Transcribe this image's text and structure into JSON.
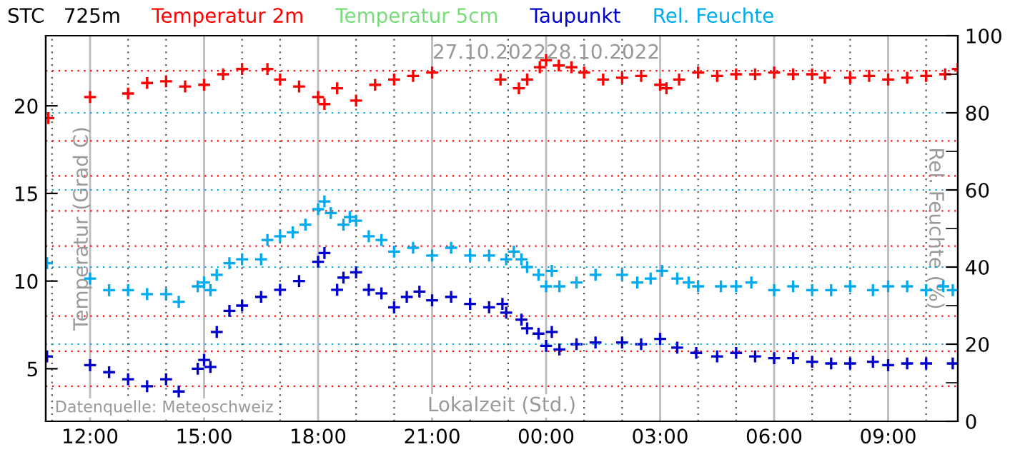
{
  "chart_data": {
    "type": "scatter",
    "title": "STC   725m",
    "xlabel": "Lokalzeit (Std.)",
    "ylabel": "Temperatur (Grad C)",
    "y2label": "Rel. Feuchte (%)",
    "annotations": [
      {
        "text": "27.10.2022",
        "x": "2022-10-28T00:00",
        "y": 23
      },
      {
        "text": "28.10.2022",
        "x": "2022-10-28T00:00",
        "y": 23
      },
      "Datenquelle: Meteoschweiz"
    ],
    "xlim": [
      "2022-10-27T10:50",
      "2022-10-28T10:50"
    ],
    "ylim": [
      2,
      24
    ],
    "y2lim": [
      0,
      100
    ],
    "xticks": [
      {
        "value": "2022-10-27T11:00",
        "label": null
      },
      {
        "value": "2022-10-27T12:00",
        "label": "12:00"
      },
      {
        "value": "2022-10-27T13:00",
        "label": null
      },
      {
        "value": "2022-10-27T14:00",
        "label": null
      },
      {
        "value": "2022-10-27T15:00",
        "label": "15:00"
      },
      {
        "value": "2022-10-27T16:00",
        "label": null
      },
      {
        "value": "2022-10-27T17:00",
        "label": null
      },
      {
        "value": "2022-10-27T18:00",
        "label": "18:00"
      },
      {
        "value": "2022-10-27T19:00",
        "label": null
      },
      {
        "value": "2022-10-27T20:00",
        "label": null
      },
      {
        "value": "2022-10-27T21:00",
        "label": "21:00"
      },
      {
        "value": "2022-10-27T22:00",
        "label": null
      },
      {
        "value": "2022-10-27T23:00",
        "label": null
      },
      {
        "value": "2022-10-28T00:00",
        "label": "00:00"
      },
      {
        "value": "2022-10-28T01:00",
        "label": null
      },
      {
        "value": "2022-10-28T02:00",
        "label": null
      },
      {
        "value": "2022-10-28T03:00",
        "label": "03:00"
      },
      {
        "value": "2022-10-28T04:00",
        "label": null
      },
      {
        "value": "2022-10-28T05:00",
        "label": null
      },
      {
        "value": "2022-10-28T06:00",
        "label": "06:00"
      },
      {
        "value": "2022-10-28T07:00",
        "label": null
      },
      {
        "value": "2022-10-28T08:00",
        "label": null
      },
      {
        "value": "2022-10-28T09:00",
        "label": "09:00"
      },
      {
        "value": "2022-10-28T10:00",
        "label": null
      }
    ],
    "yticks": [
      {
        "value": 4,
        "label": null
      },
      5,
      {
        "value": 6,
        "label": null
      },
      {
        "value": 8,
        "label": null
      },
      10,
      {
        "value": 12,
        "label": null
      },
      {
        "value": 14,
        "label": null
      },
      15,
      {
        "value": 16,
        "label": null
      },
      {
        "value": 18,
        "label": null
      },
      20,
      {
        "value": 22,
        "label": null
      }
    ],
    "y2ticks": [
      0,
      {
        "value": 10,
        "label": null
      },
      20,
      {
        "value": 30,
        "label": null
      },
      40,
      {
        "value": 50,
        "label": null
      },
      60,
      {
        "value": 70,
        "label": null
      },
      80,
      {
        "value": 90,
        "label": null
      },
      100
    ],
    "grid": true,
    "legend": "top",
    "marker": "cross",
    "series": [
      {
        "name": "Temperatur 2m",
        "color": "#ff0000",
        "x": [
          "2022-10-27T10:54",
          "2022-10-27T12:00",
          "2022-10-27T13:00",
          "2022-10-27T13:30",
          "2022-10-27T14:00",
          "2022-10-27T14:30",
          "2022-10-27T15:00",
          "2022-10-27T15:30",
          "2022-10-27T16:00",
          "2022-10-27T16:40",
          "2022-10-27T17:00",
          "2022-10-27T17:30",
          "2022-10-27T18:00",
          "2022-10-27T18:10",
          "2022-10-27T18:30",
          "2022-10-27T19:00",
          "2022-10-27T19:30",
          "2022-10-27T20:00",
          "2022-10-27T20:30",
          "2022-10-27T21:00",
          "2022-10-27T22:48",
          "2022-10-27T23:17",
          "2022-10-27T23:30",
          "2022-10-27T23:50",
          "2022-10-28T00:00",
          "2022-10-28T00:20",
          "2022-10-28T00:40",
          "2022-10-28T01:00",
          "2022-10-28T01:30",
          "2022-10-28T02:00",
          "2022-10-28T02:30",
          "2022-10-28T03:00",
          "2022-10-28T03:10",
          "2022-10-28T03:30",
          "2022-10-28T04:00",
          "2022-10-28T04:30",
          "2022-10-28T05:00",
          "2022-10-28T05:30",
          "2022-10-28T06:00",
          "2022-10-28T06:30",
          "2022-10-28T07:00",
          "2022-10-28T07:20",
          "2022-10-28T08:00",
          "2022-10-28T08:30",
          "2022-10-28T09:00",
          "2022-10-28T09:30",
          "2022-10-28T10:00",
          "2022-10-28T10:30",
          "2022-10-28T10:50"
        ],
        "values": [
          19.3,
          20.5,
          20.7,
          21.3,
          21.4,
          21.1,
          21.2,
          21.8,
          22.1,
          22.1,
          21.5,
          21.1,
          20.5,
          20.1,
          21.0,
          20.3,
          21.2,
          21.5,
          21.7,
          21.9,
          21.5,
          21.0,
          21.5,
          22.2,
          22.6,
          22.3,
          22.2,
          21.9,
          21.5,
          21.6,
          21.7,
          21.2,
          21.0,
          21.5,
          21.9,
          21.7,
          21.8,
          21.8,
          21.9,
          21.8,
          21.8,
          21.6,
          21.6,
          21.7,
          21.5,
          21.6,
          21.7,
          21.8,
          22.1
        ]
      },
      {
        "name": "Temperatur 5cm",
        "color": "#77dd77"
      },
      {
        "name": "Taupunkt",
        "color": "#0000cc",
        "x": [
          "2022-10-27T10:52",
          "2022-10-27T12:00",
          "2022-10-27T12:30",
          "2022-10-27T13:00",
          "2022-10-27T13:30",
          "2022-10-27T14:00",
          "2022-10-27T14:20",
          "2022-10-27T14:50",
          "2022-10-27T15:00",
          "2022-10-27T15:10",
          "2022-10-27T15:20",
          "2022-10-27T15:40",
          "2022-10-27T16:00",
          "2022-10-27T16:30",
          "2022-10-27T17:00",
          "2022-10-27T17:30",
          "2022-10-27T18:00",
          "2022-10-27T18:10",
          "2022-10-27T18:30",
          "2022-10-27T18:40",
          "2022-10-27T19:00",
          "2022-10-27T19:20",
          "2022-10-27T19:40",
          "2022-10-27T20:00",
          "2022-10-27T20:20",
          "2022-10-27T20:40",
          "2022-10-27T21:00",
          "2022-10-27T21:30",
          "2022-10-27T22:00",
          "2022-10-27T22:30",
          "2022-10-27T22:51",
          "2022-10-27T22:57",
          "2022-10-27T23:21",
          "2022-10-27T23:30",
          "2022-10-27T23:48",
          "2022-10-28T00:00",
          "2022-10-28T00:09",
          "2022-10-28T00:21",
          "2022-10-28T00:48",
          "2022-10-28T01:18",
          "2022-10-28T02:00",
          "2022-10-28T02:30",
          "2022-10-28T03:00",
          "2022-10-28T03:27",
          "2022-10-28T03:57",
          "2022-10-28T04:30",
          "2022-10-28T05:00",
          "2022-10-28T05:30",
          "2022-10-28T06:00",
          "2022-10-28T06:30",
          "2022-10-28T07:00",
          "2022-10-28T07:30",
          "2022-10-28T08:00",
          "2022-10-28T08:36",
          "2022-10-28T09:00",
          "2022-10-28T09:30",
          "2022-10-28T10:00",
          "2022-10-28T10:42"
        ],
        "values": [
          5.7,
          5.2,
          4.8,
          4.4,
          4.0,
          4.4,
          3.7,
          5.0,
          5.5,
          5.1,
          7.1,
          8.3,
          8.6,
          9.1,
          9.5,
          10.0,
          11.1,
          11.6,
          9.5,
          10.2,
          10.5,
          9.5,
          9.3,
          8.5,
          9.1,
          9.4,
          8.9,
          9.1,
          8.7,
          8.5,
          8.7,
          8.2,
          7.8,
          7.3,
          7.0,
          6.3,
          7.1,
          6.1,
          6.4,
          6.5,
          6.5,
          6.4,
          6.7,
          6.2,
          5.9,
          5.7,
          5.9,
          5.7,
          5.6,
          5.6,
          5.4,
          5.3,
          5.3,
          5.4,
          5.2,
          5.3,
          5.3,
          5.3
        ]
      },
      {
        "name": "Rel. Feuchte",
        "color": "#00aaee",
        "axis": "y2",
        "x": [
          "2022-10-27T10:52",
          "2022-10-27T12:00",
          "2022-10-27T12:30",
          "2022-10-27T13:00",
          "2022-10-27T13:30",
          "2022-10-27T14:00",
          "2022-10-27T14:20",
          "2022-10-27T14:50",
          "2022-10-27T15:00",
          "2022-10-27T15:10",
          "2022-10-27T15:20",
          "2022-10-27T15:40",
          "2022-10-27T16:00",
          "2022-10-27T16:30",
          "2022-10-27T16:40",
          "2022-10-27T17:00",
          "2022-10-27T17:20",
          "2022-10-27T17:40",
          "2022-10-27T18:00",
          "2022-10-27T18:10",
          "2022-10-27T18:20",
          "2022-10-27T18:40",
          "2022-10-27T18:50",
          "2022-10-27T19:00",
          "2022-10-27T19:20",
          "2022-10-27T19:40",
          "2022-10-27T20:00",
          "2022-10-27T20:30",
          "2022-10-27T21:00",
          "2022-10-27T21:30",
          "2022-10-27T22:00",
          "2022-10-27T22:30",
          "2022-10-27T22:57",
          "2022-10-27T23:09",
          "2022-10-27T23:21",
          "2022-10-27T23:30",
          "2022-10-27T23:48",
          "2022-10-28T00:00",
          "2022-10-28T00:09",
          "2022-10-28T00:21",
          "2022-10-28T00:48",
          "2022-10-28T01:18",
          "2022-10-28T02:00",
          "2022-10-28T02:24",
          "2022-10-28T02:45",
          "2022-10-28T03:03",
          "2022-10-28T03:27",
          "2022-10-28T03:45",
          "2022-10-28T04:00",
          "2022-10-28T04:36",
          "2022-10-28T05:00",
          "2022-10-28T05:24",
          "2022-10-28T06:00",
          "2022-10-28T06:30",
          "2022-10-28T07:00",
          "2022-10-28T07:30",
          "2022-10-28T08:00",
          "2022-10-28T08:36",
          "2022-10-28T09:00",
          "2022-10-28T09:30",
          "2022-10-28T10:00",
          "2022-10-28T10:27",
          "2022-10-28T10:42"
        ],
        "values": [
          41,
          37,
          34,
          34,
          33,
          33,
          31,
          35,
          36,
          34,
          38,
          41,
          42,
          42,
          47,
          48,
          49,
          51,
          55,
          57,
          54,
          51,
          53,
          52,
          48,
          47,
          44,
          45,
          43,
          45,
          43,
          43,
          42,
          44,
          42,
          40,
          38,
          35,
          39,
          35,
          36,
          38,
          38,
          36,
          37,
          39,
          37,
          36,
          35,
          35,
          35,
          36,
          34,
          35,
          34,
          34,
          35,
          34,
          35,
          35,
          34,
          35,
          34
        ]
      }
    ]
  }
}
